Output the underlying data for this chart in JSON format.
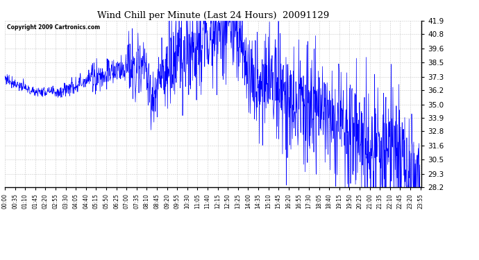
{
  "title": "Wind Chill per Minute (Last 24 Hours)  20091129",
  "copyright_text": "Copyright 2009 Cartronics.com",
  "line_color": "#0000FF",
  "background_color": "#FFFFFF",
  "plot_bg_color": "#FFFFFF",
  "grid_color": "#BBBBBB",
  "ylim": [
    28.2,
    41.9
  ],
  "yticks": [
    28.2,
    29.3,
    30.5,
    31.6,
    32.8,
    33.9,
    35.0,
    36.2,
    37.3,
    38.5,
    39.6,
    40.8,
    41.9
  ],
  "x_tick_labels": [
    "00:00",
    "00:35",
    "01:10",
    "01:45",
    "02:20",
    "02:55",
    "03:30",
    "04:05",
    "04:40",
    "05:15",
    "05:50",
    "06:25",
    "07:00",
    "07:35",
    "08:10",
    "08:45",
    "09:20",
    "09:55",
    "10:30",
    "11:05",
    "11:40",
    "12:15",
    "12:50",
    "13:25",
    "14:00",
    "14:35",
    "15:10",
    "15:45",
    "16:20",
    "16:55",
    "17:30",
    "18:05",
    "18:40",
    "19:15",
    "19:50",
    "20:25",
    "21:00",
    "21:35",
    "22:10",
    "22:45",
    "23:20",
    "23:55"
  ],
  "n_points": 1440,
  "seed": 77,
  "figsize": [
    6.9,
    3.75
  ],
  "dpi": 100
}
